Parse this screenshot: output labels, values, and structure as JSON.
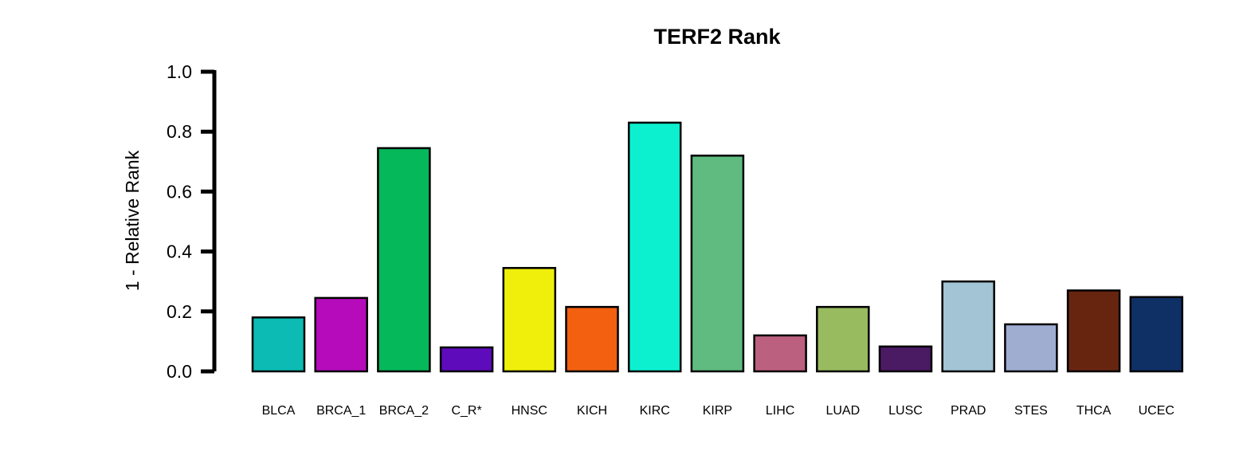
{
  "chart_data": {
    "type": "bar",
    "title": "TERF2 Rank",
    "xlabel": "",
    "ylabel": "1 - Relative Rank",
    "ylim": [
      0,
      1
    ],
    "yticks": [
      "0.0",
      "0.2",
      "0.4",
      "0.6",
      "0.8",
      "1.0"
    ],
    "grid": false,
    "categories": [
      "BLCA",
      "BRCA_1",
      "BRCA_2",
      "C_R*",
      "HNSC",
      "KICH",
      "KIRC",
      "KIRP",
      "LIHC",
      "LUAD",
      "LUSC",
      "PRAD",
      "STES",
      "THCA",
      "UCEC"
    ],
    "values": [
      0.18,
      0.245,
      0.745,
      0.08,
      0.345,
      0.215,
      0.83,
      0.72,
      0.12,
      0.215,
      0.083,
      0.3,
      0.157,
      0.27,
      0.248
    ],
    "colors": [
      "#0bbbb4",
      "#b50bbb",
      "#05b85a",
      "#5e0bbb",
      "#efef0b",
      "#f26010",
      "#0cf0d0",
      "#5fbb80",
      "#bc607f",
      "#98bb60",
      "#4a1a62",
      "#a2c4d4",
      "#9fadd1",
      "#672510",
      "#0f3065"
    ]
  }
}
